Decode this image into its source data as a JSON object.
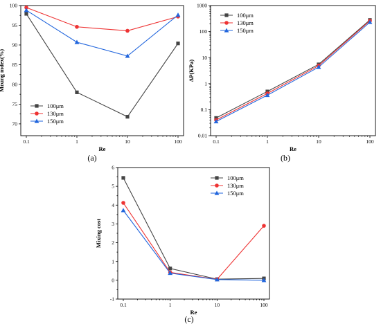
{
  "colors": {
    "100": "#444444",
    "130": "#ee3333",
    "150": "#2266dd"
  },
  "chart_data": [
    {
      "id": "a",
      "type": "line",
      "panel_label": "(a)",
      "x_scale": "log",
      "x": [
        0.1,
        1,
        10,
        100
      ],
      "x_tick_labels": [
        "0.1",
        "1",
        "10",
        "100"
      ],
      "y_scale": "linear",
      "ylim": [
        67,
        100
      ],
      "y_ticks": [
        70,
        75,
        80,
        85,
        90,
        95,
        100
      ],
      "y_tick_labels": [
        "70",
        "75",
        "80",
        "85",
        "90",
        "95",
        "100"
      ],
      "xlabel": "Re",
      "ylabel": "Mixing index(%)",
      "legend_position": "bottom-left",
      "series": [
        {
          "name": "100μm",
          "marker": "square",
          "values": [
            97.9,
            78.0,
            71.8,
            90.4
          ]
        },
        {
          "name": "130μm",
          "marker": "circle",
          "values": [
            99.5,
            94.6,
            93.6,
            97.2
          ]
        },
        {
          "name": "150μm",
          "marker": "triangle",
          "values": [
            98.8,
            90.7,
            87.2,
            97.6
          ]
        }
      ]
    },
    {
      "id": "b",
      "type": "line",
      "panel_label": "(b)",
      "x_scale": "log",
      "x": [
        0.1,
        1,
        10,
        100
      ],
      "x_tick_labels": [
        "0.1",
        "1",
        "10",
        "100"
      ],
      "y_scale": "log",
      "ylim": [
        0.01,
        1000
      ],
      "y_ticks": [
        0.01,
        0.1,
        1,
        10,
        100,
        1000
      ],
      "y_tick_labels": [
        "0.01",
        "0.1",
        "1",
        "10",
        "100",
        "1000"
      ],
      "xlabel": "Re",
      "ylabel": "ΔP(KPa)",
      "legend_position": "top-left",
      "series": [
        {
          "name": "100μm",
          "marker": "square",
          "values": [
            0.048,
            0.5,
            5.5,
            280
          ]
        },
        {
          "name": "130μm",
          "marker": "circle",
          "values": [
            0.04,
            0.42,
            4.9,
            260
          ]
        },
        {
          "name": "150μm",
          "marker": "triangle",
          "values": [
            0.035,
            0.36,
            4.3,
            230
          ]
        }
      ]
    },
    {
      "id": "c",
      "type": "line",
      "panel_label": "(c)",
      "x_scale": "log",
      "x": [
        0.1,
        1,
        10,
        100
      ],
      "x_tick_labels": [
        "0.1",
        "1",
        "10",
        "100"
      ],
      "y_scale": "linear",
      "ylim": [
        -1,
        6
      ],
      "y_ticks": [
        -1,
        0,
        1,
        2,
        3,
        4,
        5,
        6
      ],
      "y_tick_labels": [
        "-1",
        "0",
        "1",
        "2",
        "3",
        "4",
        "5",
        "6"
      ],
      "xlabel": "Re",
      "ylabel": "Mixing cost",
      "legend_position": "top-right",
      "series": [
        {
          "name": "100μm",
          "marker": "square",
          "values": [
            5.45,
            0.63,
            0.06,
            0.1
          ]
        },
        {
          "name": "130μm",
          "marker": "circle",
          "values": [
            4.12,
            0.42,
            0.05,
            2.9
          ]
        },
        {
          "name": "150μm",
          "marker": "triangle",
          "values": [
            3.72,
            0.38,
            0.04,
            0.0
          ]
        }
      ]
    }
  ]
}
